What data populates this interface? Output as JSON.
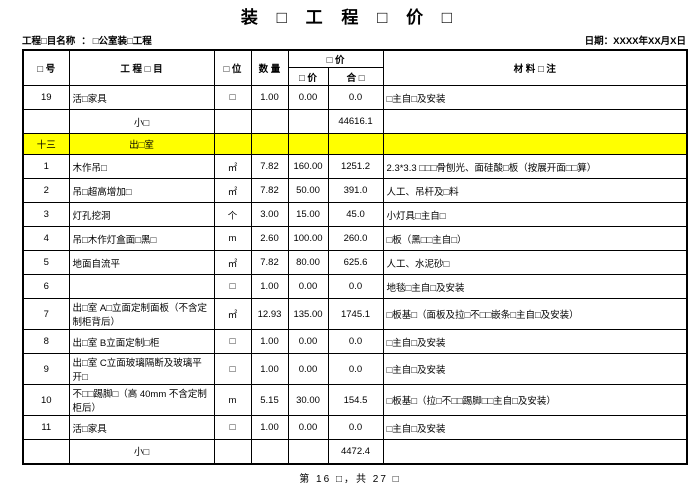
{
  "title": "装 □ 工 程 □ 价 □",
  "info": {
    "project_label": "工程□目名称",
    "project_separator": "：",
    "project_value": "□公室装□工程",
    "date_label": "日期：",
    "date_value": "XXXX年XX月X日"
  },
  "table": {
    "headers": {
      "no": "□ 号",
      "item": "工  程  □  目",
      "unit": "□ 位",
      "qty": "数 量",
      "price_group": "□ 价",
      "unit_price": "□ 价",
      "total_price": "合 □",
      "remark": "材 料 □ 注"
    },
    "rows": [
      {
        "type": "item",
        "no": "19",
        "name": "活□家具",
        "unit": "□",
        "qty": "1.00",
        "price": "0.00",
        "total": "0.0",
        "remark": "□主自□及安装"
      },
      {
        "type": "subtotal",
        "name": "小□",
        "total": "44616.1"
      },
      {
        "type": "section",
        "no": "十三",
        "name": "出□室"
      },
      {
        "type": "item",
        "no": "1",
        "name": "木作吊□",
        "unit": "㎡",
        "qty": "7.82",
        "price": "160.00",
        "total": "1251.2",
        "remark": "2.3*3.3 □□□骨刨光、面硅酸□板（按展开面□□算）"
      },
      {
        "type": "item",
        "no": "2",
        "name": "吊□超高增加□",
        "unit": "㎡",
        "qty": "7.82",
        "price": "50.00",
        "total": "391.0",
        "remark": "人工、吊杆及□料"
      },
      {
        "type": "item",
        "no": "3",
        "name": "灯孔挖洞",
        "unit": "个",
        "qty": "3.00",
        "price": "15.00",
        "total": "45.0",
        "remark": "小灯具□主自□"
      },
      {
        "type": "item",
        "no": "4",
        "name": "吊□木作灯盒面□黑□",
        "unit": "m",
        "qty": "2.60",
        "price": "100.00",
        "total": "260.0",
        "remark": "□板（黑□□主自□）"
      },
      {
        "type": "item",
        "no": "5",
        "name": "地面自流平",
        "unit": "㎡",
        "qty": "7.82",
        "price": "80.00",
        "total": "625.6",
        "remark": "人工、水泥砂□"
      },
      {
        "type": "item",
        "no": "6",
        "name": "",
        "unit": "□",
        "qty": "1.00",
        "price": "0.00",
        "total": "0.0",
        "remark": "地毯□主自□及安装"
      },
      {
        "type": "item",
        "no": "7",
        "name": "出□室 A□立面定制面板（不含定制柜背后）",
        "unit": "㎡",
        "qty": "12.93",
        "price": "135.00",
        "total": "1745.1",
        "remark": "□板基□（面板及拉□不□□嵌条□主自□及安装）"
      },
      {
        "type": "item",
        "no": "8",
        "name": "出□室 B立面定制□柜",
        "unit": "□",
        "qty": "1.00",
        "price": "0.00",
        "total": "0.0",
        "remark": "□主自□及安装"
      },
      {
        "type": "item",
        "no": "9",
        "name": "出□室 C立面玻璃隔断及玻璃平开□",
        "unit": "□",
        "qty": "1.00",
        "price": "0.00",
        "total": "0.0",
        "remark": "□主自□及安装"
      },
      {
        "type": "item",
        "no": "10",
        "name": "不□□踢脚□（高 40mm 不含定制柜后）",
        "unit": "m",
        "qty": "5.15",
        "price": "30.00",
        "total": "154.5",
        "remark": "□板基□（拉□不□□踢脚□□主自□及安装）"
      },
      {
        "type": "item",
        "no": "11",
        "name": "活□家具",
        "unit": "□",
        "qty": "1.00",
        "price": "0.00",
        "total": "0.0",
        "remark": "□主自□及安装"
      },
      {
        "type": "subtotal",
        "name": "小□",
        "total": "4472.4"
      }
    ]
  },
  "footer": {
    "page_text": "第 16 □，共 27 □"
  },
  "colors": {
    "section_highlight": "#ffff00",
    "border": "#000000"
  }
}
